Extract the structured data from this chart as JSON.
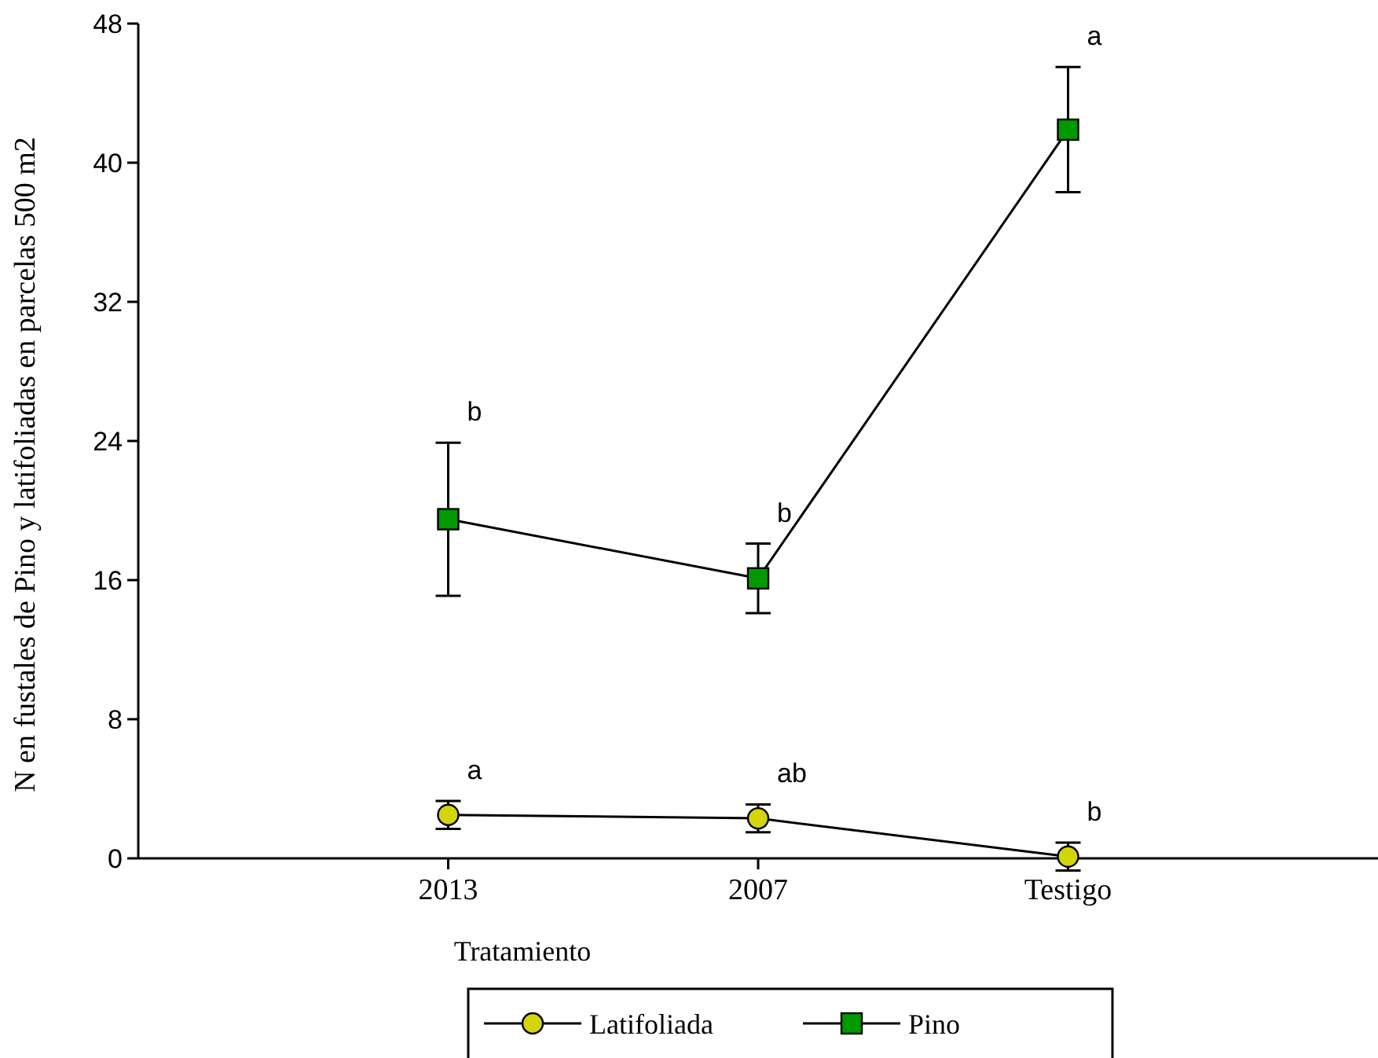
{
  "chart_data": {
    "type": "line",
    "xlabel": "Tratamiento",
    "ylabel": "N en fustales de Pino y latifoliadas en parcelas 500 m2",
    "categories": [
      "2013",
      "2007",
      "Testigo"
    ],
    "series": [
      {
        "name": "Latifoliada",
        "color": "#d4d40a",
        "marker": "circle",
        "values": [
          2.5,
          2.3,
          0.1
        ],
        "errors": [
          0.8,
          0.8,
          0.8
        ],
        "value_labels": [
          "a",
          "ab",
          "b"
        ]
      },
      {
        "name": "Pino",
        "color": "#009900",
        "marker": "square",
        "values": [
          19.5,
          16.1,
          41.9
        ],
        "errors": [
          4.4,
          2.0,
          3.6
        ],
        "value_labels": [
          "b",
          "b",
          "a"
        ]
      }
    ],
    "ylim": [
      0,
      48
    ],
    "yticks": [
      0,
      8,
      16,
      24,
      32,
      40,
      48
    ],
    "grid": false,
    "legend": "bottom"
  }
}
